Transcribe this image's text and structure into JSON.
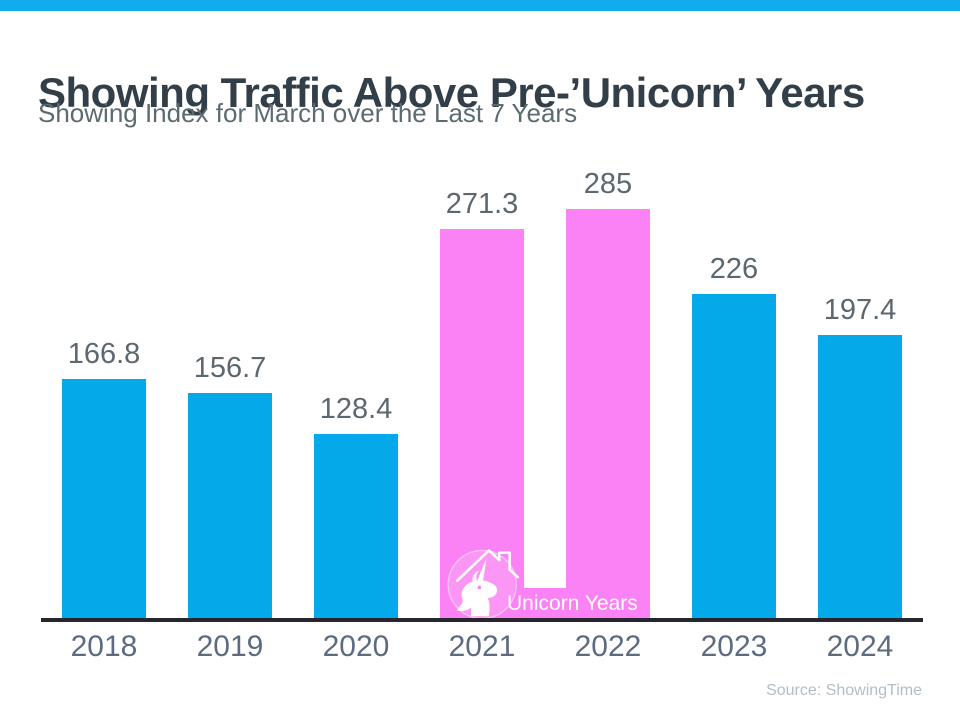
{
  "header": {
    "title": "Showing Traffic Above Pre-’Unicorn’ Years",
    "subtitle": "Showing Index for March over the Last 7 Years"
  },
  "chart_data": {
    "type": "bar",
    "title": "Showing Traffic Above Pre-’Unicorn’ Years",
    "subtitle": "Showing Index for March over the Last 7 Years",
    "categories": [
      "2018",
      "2019",
      "2020",
      "2021",
      "2022",
      "2023",
      "2024"
    ],
    "values": [
      166.8,
      156.7,
      128.4,
      271.3,
      285,
      226,
      197.4
    ],
    "value_labels": [
      "166.8",
      "156.7",
      "128.4",
      "271.3",
      "285",
      "226",
      "197.4"
    ],
    "highlight_indices": [
      3,
      4
    ],
    "highlight_label": "Unicorn Years",
    "xlabel": "",
    "ylabel": "",
    "ylim": [
      0,
      285
    ],
    "grid": false,
    "legend": "none",
    "colors": {
      "bar": "#04A9E9",
      "highlight": "#FB82F4",
      "axis": "#26262C",
      "value_label": "#5C6770",
      "category_label": "#5C6B80"
    }
  },
  "annotations": {
    "unicorn_icon": "unicorn-house-icon"
  },
  "footer": {
    "source": "Source: ShowingTime"
  },
  "theme": {
    "accent_bar": "#12ACEC",
    "background": "#FFFFFF",
    "title_color": "#333F48",
    "subtitle_color": "#5C6B70",
    "source_color": "#B2BDC6"
  }
}
